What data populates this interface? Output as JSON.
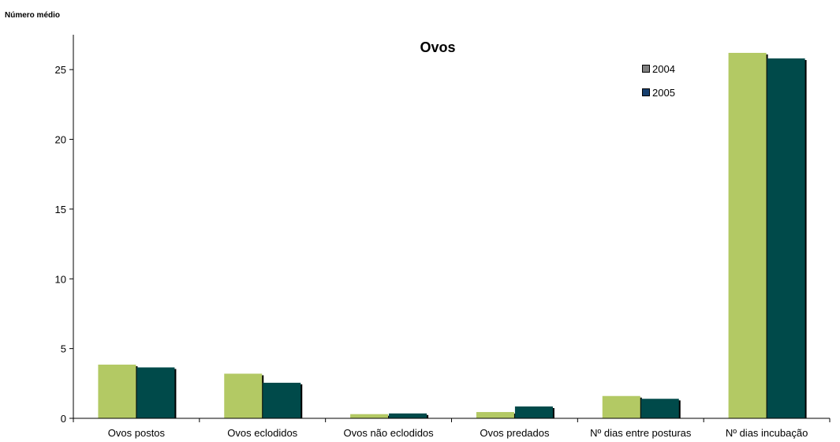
{
  "chart_data": {
    "type": "bar",
    "title": "Ovos",
    "ylabel": "Número médio",
    "xlabel": "",
    "categories": [
      "Ovos postos",
      "Ovos eclodidos",
      "Ovos não eclodidos",
      "Ovos predados",
      "Nº dias entre posturas",
      "Nº dias incubação"
    ],
    "series": [
      {
        "name": "2004",
        "values": [
          3.85,
          3.2,
          0.3,
          0.45,
          1.6,
          26.2
        ],
        "color": "#b3c964",
        "legend_color": "#808080"
      },
      {
        "name": "2005",
        "values": [
          3.65,
          2.55,
          0.35,
          0.85,
          1.4,
          25.8
        ],
        "color": "#004a4a",
        "legend_color": "#173f6e"
      }
    ],
    "ylim": [
      0,
      27.5
    ],
    "yticks": [
      0,
      5,
      10,
      15,
      20,
      25
    ],
    "grid": false,
    "legend_position": "top-right"
  }
}
